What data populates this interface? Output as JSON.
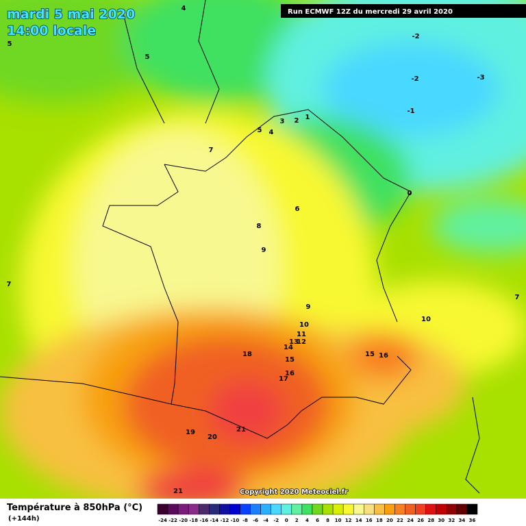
{
  "header": {
    "date": "mardi 5 mai 2020",
    "time": "14:00 locale",
    "run": "Run ECMWF 12Z du mercredi 29 avril 2020"
  },
  "map_labels": [
    4,
    5,
    5,
    -2,
    -2,
    -3,
    -1,
    3,
    2,
    1,
    5,
    4,
    7,
    0,
    6,
    8,
    9,
    7,
    7,
    9,
    10,
    10,
    11,
    13,
    12,
    14,
    18,
    15,
    16,
    15,
    16,
    17,
    21,
    19,
    20,
    21
  ],
  "footer": {
    "title": "Température à 850hPa (°C)",
    "lead": "(+144h)",
    "copyright": "Copyright 2020 Meteociel.fr"
  },
  "legend": {
    "labels": [
      -24,
      -22,
      -20,
      -18,
      -16,
      -14,
      -12,
      -10,
      -8,
      -6,
      -4,
      -2,
      0,
      2,
      4,
      6,
      8,
      10,
      12,
      14,
      16,
      18,
      20,
      22,
      24,
      26,
      28,
      30,
      32,
      34,
      36
    ],
    "colors": [
      "#3a0030",
      "#5a0a5a",
      "#7a1a7a",
      "#8a2a8a",
      "#4a2a6a",
      "#2a2a7a",
      "#1010a0",
      "#0000d0",
      "#0a40ff",
      "#1a80ff",
      "#2ab0ff",
      "#4ad8ff",
      "#60f0e0",
      "#60f0a0",
      "#40e060",
      "#70d820",
      "#a8e000",
      "#d8f000",
      "#f8f830",
      "#f8f890",
      "#f8e080",
      "#f8c040",
      "#f8a010",
      "#f88020",
      "#f06020",
      "#f04020",
      "#e01010",
      "#c00000",
      "#900000",
      "#600000",
      "#000000"
    ]
  }
}
